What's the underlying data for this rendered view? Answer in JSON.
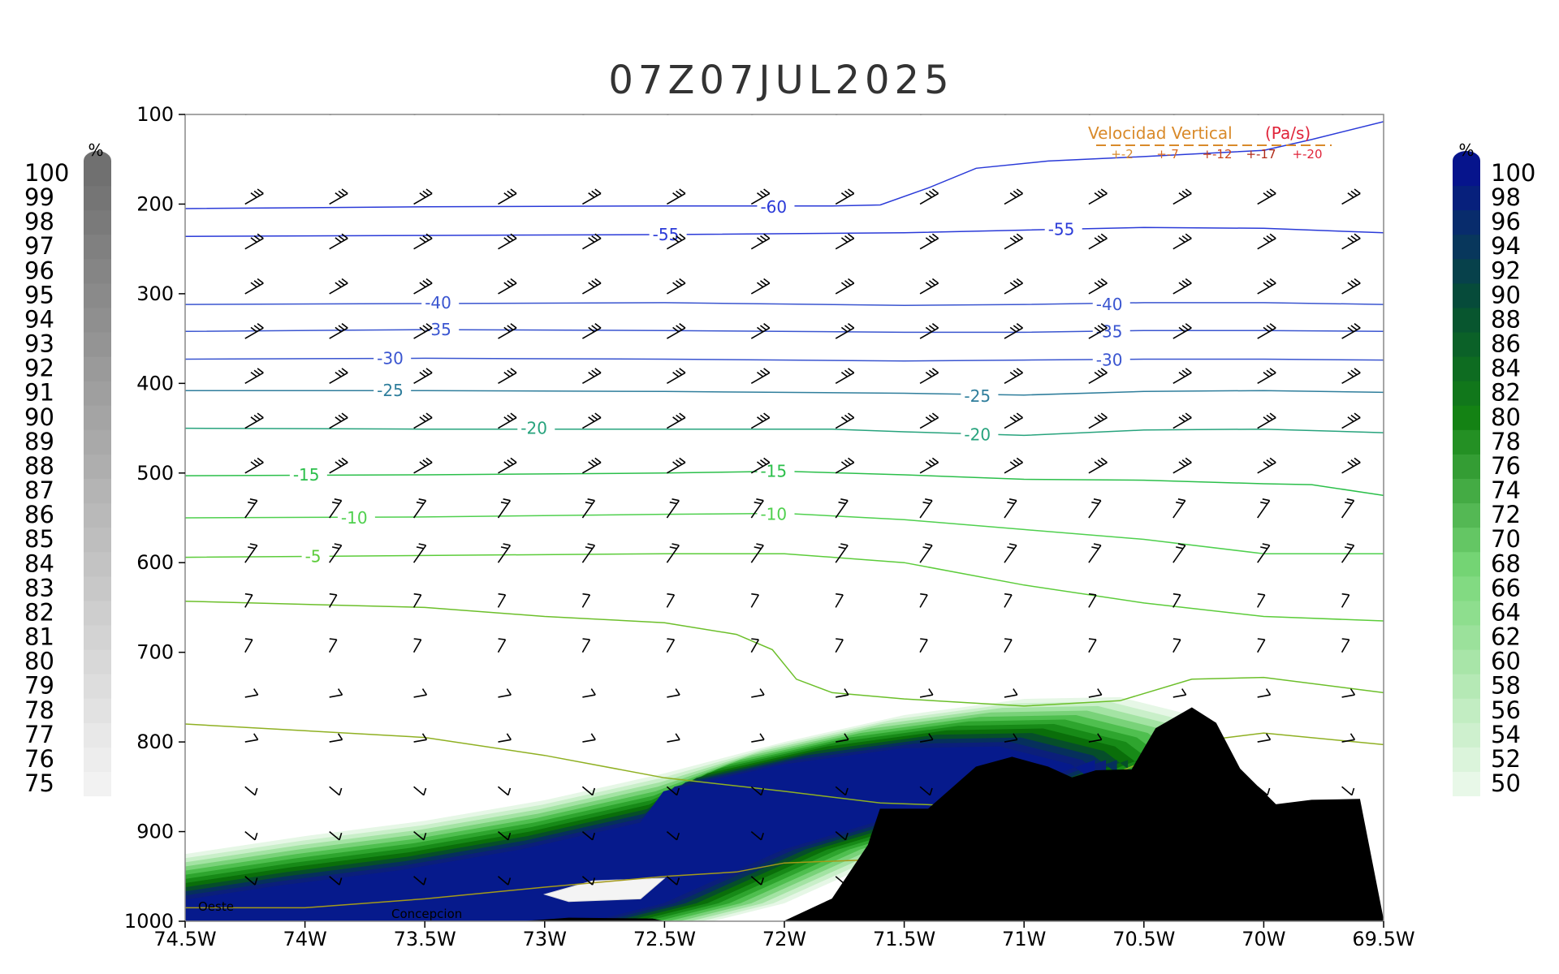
{
  "chart_data": {
    "type": "heatmap",
    "title": "07Z07JUL2025",
    "x_ticks": [
      "74.5W",
      "74W",
      "73.5W",
      "73W",
      "72.5W",
      "72W",
      "71.5W",
      "71W",
      "70.5W",
      "70W",
      "69.5W"
    ],
    "x_values": [
      -74.5,
      -74,
      -73.5,
      -73,
      -72.5,
      -72,
      -71.5,
      -71,
      -70.5,
      -70,
      -69.5
    ],
    "y_ticks": [
      "100",
      "200",
      "300",
      "400",
      "500",
      "600",
      "700",
      "800",
      "900",
      "1000"
    ],
    "y_values": [
      100,
      200,
      300,
      400,
      500,
      600,
      700,
      800,
      900,
      1000
    ],
    "xlim": [
      -74.5,
      -69.5
    ],
    "ylim": [
      1000,
      100
    ],
    "temperature_contours": [
      {
        "label": "-60",
        "color": "#2a3ad8",
        "label_pos": [
          -72.1,
          203
        ],
        "points": [
          [
            -74.5,
            205
          ],
          [
            -73.5,
            203
          ],
          [
            -72.5,
            202
          ],
          [
            -71.8,
            202
          ],
          [
            -71.6,
            201
          ],
          [
            -71.4,
            182
          ],
          [
            -71.2,
            160
          ],
          [
            -70.9,
            152
          ],
          [
            -70.5,
            147
          ],
          [
            -70.0,
            140
          ],
          [
            -69.8,
            128
          ],
          [
            -69.5,
            108
          ]
        ]
      },
      {
        "label": "-55",
        "color": "#2a3ad8",
        "label_pos": [
          -72.55,
          234
        ],
        "points": [
          [
            -74.5,
            236
          ],
          [
            -73.5,
            235
          ],
          [
            -72.5,
            234
          ],
          [
            -71.5,
            232
          ],
          [
            -71.0,
            229
          ],
          [
            -70.5,
            226
          ],
          [
            -70.0,
            227
          ],
          [
            -69.5,
            232
          ]
        ]
      },
      {
        "label": "-55",
        "color": "#2a3ad8",
        "label_pos": [
          -70.9,
          228
        ],
        "points": []
      },
      {
        "label": "-40",
        "color": "#3a55d0",
        "label_pos": [
          -73.5,
          310
        ],
        "points": [
          [
            -74.5,
            312
          ],
          [
            -73.5,
            311
          ],
          [
            -72.5,
            310
          ],
          [
            -71.5,
            313
          ],
          [
            -71.0,
            312
          ],
          [
            -70.5,
            310
          ],
          [
            -70.0,
            310
          ],
          [
            -69.5,
            312
          ]
        ]
      },
      {
        "label": "-40",
        "color": "#3a55d0",
        "label_pos": [
          -70.7,
          312
        ],
        "points": []
      },
      {
        "label": "-35",
        "color": "#3a55d0",
        "label_pos": [
          -73.5,
          340
        ],
        "points": [
          [
            -74.5,
            342
          ],
          [
            -73.5,
            340
          ],
          [
            -72.5,
            341
          ],
          [
            -71.5,
            343
          ],
          [
            -71.0,
            343
          ],
          [
            -70.5,
            341
          ],
          [
            -70.0,
            341
          ],
          [
            -69.5,
            342
          ]
        ]
      },
      {
        "label": "-35",
        "color": "#3a55d0",
        "label_pos": [
          -70.7,
          342
        ],
        "points": []
      },
      {
        "label": "-30",
        "color": "#3a55d0",
        "label_pos": [
          -73.7,
          372
        ],
        "points": [
          [
            -74.5,
            373
          ],
          [
            -73.5,
            372
          ],
          [
            -72.5,
            373
          ],
          [
            -71.5,
            375
          ],
          [
            -71.0,
            374
          ],
          [
            -70.5,
            373
          ],
          [
            -70.0,
            373
          ],
          [
            -69.5,
            374
          ]
        ]
      },
      {
        "label": "-30",
        "color": "#3a55d0",
        "label_pos": [
          -70.7,
          374
        ],
        "points": []
      },
      {
        "label": "-25",
        "color": "#2f7e9c",
        "label_pos": [
          -73.7,
          408
        ],
        "points": [
          [
            -74.5,
            408
          ],
          [
            -73.5,
            408
          ],
          [
            -72.5,
            409
          ],
          [
            -71.5,
            411
          ],
          [
            -71.0,
            413
          ],
          [
            -70.5,
            409
          ],
          [
            -70.0,
            408
          ],
          [
            -69.5,
            410
          ]
        ]
      },
      {
        "label": "-25",
        "color": "#2f7e9c",
        "label_pos": [
          -71.25,
          414
        ],
        "points": []
      },
      {
        "label": "-20",
        "color": "#27a37d",
        "label_pos": [
          -73.1,
          450
        ],
        "points": [
          [
            -74.5,
            450
          ],
          [
            -73.5,
            451
          ],
          [
            -72.5,
            451
          ],
          [
            -71.8,
            451
          ],
          [
            -71.5,
            454
          ],
          [
            -71.0,
            458
          ],
          [
            -70.5,
            452
          ],
          [
            -70.0,
            451
          ],
          [
            -69.5,
            455
          ]
        ]
      },
      {
        "label": "-20",
        "color": "#27a37d",
        "label_pos": [
          -71.25,
          457
        ],
        "points": []
      },
      {
        "label": "-15",
        "color": "#2bbf4a",
        "label_pos": [
          -74.05,
          502
        ],
        "points": [
          [
            -74.5,
            503
          ],
          [
            -73.5,
            502
          ],
          [
            -72.5,
            500
          ],
          [
            -72.0,
            498
          ],
          [
            -71.5,
            502
          ],
          [
            -71.0,
            507
          ],
          [
            -70.5,
            508
          ],
          [
            -70.0,
            512
          ],
          [
            -69.8,
            513
          ],
          [
            -69.5,
            525
          ]
        ]
      },
      {
        "label": "-15",
        "color": "#2bbf4a",
        "label_pos": [
          -72.1,
          498
        ],
        "points": []
      },
      {
        "label": "-10",
        "color": "#4fd04e",
        "label_pos": [
          -73.85,
          550
        ],
        "points": [
          [
            -74.5,
            550
          ],
          [
            -73.5,
            549
          ],
          [
            -72.5,
            546
          ],
          [
            -72.0,
            545
          ],
          [
            -71.5,
            552
          ],
          [
            -71.0,
            563
          ],
          [
            -70.5,
            574
          ],
          [
            -70.0,
            590
          ],
          [
            -69.5,
            590
          ]
        ]
      },
      {
        "label": "-10",
        "color": "#4fd04e",
        "label_pos": [
          -72.1,
          546
        ],
        "points": []
      },
      {
        "label": "-5",
        "color": "#5ccc3a",
        "label_pos": [
          -74.0,
          593
        ],
        "points": [
          [
            -74.5,
            594
          ],
          [
            -73.5,
            592
          ],
          [
            -72.5,
            590
          ],
          [
            -72.0,
            590
          ],
          [
            -71.5,
            600
          ],
          [
            -71.0,
            625
          ],
          [
            -70.5,
            645
          ],
          [
            -70.0,
            660
          ],
          [
            -69.5,
            665
          ]
        ]
      },
      {
        "label": "",
        "color": "#6cbf2a",
        "label_pos": null,
        "points": [
          [
            -74.5,
            643
          ],
          [
            -73.5,
            650
          ],
          [
            -73.0,
            660
          ],
          [
            -72.5,
            667
          ],
          [
            -72.2,
            680
          ],
          [
            -72.05,
            697
          ],
          [
            -71.95,
            730
          ],
          [
            -71.8,
            745
          ],
          [
            -71.5,
            752
          ],
          [
            -71.0,
            760
          ],
          [
            -70.6,
            754
          ],
          [
            -70.3,
            730
          ],
          [
            -70.0,
            728
          ],
          [
            -69.5,
            745
          ]
        ]
      },
      {
        "label": "",
        "color": "#8fb022",
        "label_pos": null,
        "points": [
          [
            -74.5,
            780
          ],
          [
            -73.5,
            795
          ],
          [
            -73.0,
            815
          ],
          [
            -72.5,
            840
          ],
          [
            -72.0,
            855
          ],
          [
            -71.6,
            868
          ],
          [
            -71.2,
            872
          ],
          [
            -70.8,
            855
          ],
          [
            -70.3,
            800
          ],
          [
            -70.0,
            790
          ],
          [
            -69.5,
            803
          ]
        ]
      },
      {
        "label": "",
        "color": "#a49a1a",
        "label_pos": null,
        "points": [
          [
            -74.5,
            985
          ],
          [
            -74.0,
            985
          ],
          [
            -73.5,
            975
          ],
          [
            -73.0,
            962
          ],
          [
            -72.5,
            950
          ],
          [
            -72.2,
            945
          ],
          [
            -72.0,
            935
          ],
          [
            -71.5,
            930
          ],
          [
            -71.2,
            920
          ],
          [
            -71.0,
            905
          ]
        ]
      }
    ],
    "humidity_shading": {
      "scale": [
        50,
        52,
        54,
        56,
        58,
        60,
        62,
        64,
        66,
        68,
        70,
        72,
        74,
        76,
        78,
        80,
        82,
        84,
        86,
        88,
        90,
        92,
        94,
        96,
        98,
        100
      ],
      "units": "%"
    },
    "cloud_shading": {
      "scale": [
        75,
        76,
        77,
        78,
        79,
        80,
        81,
        82,
        83,
        84,
        85,
        86,
        87,
        88,
        89,
        90,
        91,
        92,
        93,
        94,
        95,
        96,
        97,
        98,
        99,
        100
      ],
      "units": "%"
    },
    "terrain_profile": [
      [
        -72.0,
        1000
      ],
      [
        -71.8,
        975
      ],
      [
        -71.65,
        915
      ],
      [
        -71.6,
        875
      ],
      [
        -71.4,
        875
      ],
      [
        -71.2,
        828
      ],
      [
        -71.05,
        817
      ],
      [
        -70.9,
        828
      ],
      [
        -70.8,
        840
      ],
      [
        -70.7,
        832
      ],
      [
        -70.55,
        831
      ],
      [
        -70.45,
        785
      ],
      [
        -70.3,
        762
      ],
      [
        -70.2,
        779
      ],
      [
        -70.1,
        830
      ],
      [
        -69.95,
        870
      ],
      [
        -69.8,
        865
      ],
      [
        -69.6,
        864
      ],
      [
        -69.5,
        1000
      ]
    ],
    "wind_barbs": "uniform westerly flow aloft, turning northwesterly to southerly near surface",
    "annotations": {
      "legend_title": "Velocidad Vertical",
      "legend_units": "(Pa/s)",
      "legend_items": [
        "+-2",
        "+-7",
        "+-12",
        "+-17",
        "+-20"
      ],
      "legend_colors": [
        "#d98a2a",
        "#d96a20",
        "#c9421a",
        "#b02a18",
        "#e0243a"
      ],
      "left_station": "Oeste",
      "center_station": "Concepcion",
      "colorbar_left_units": "%",
      "colorbar_right_units": "%"
    }
  }
}
